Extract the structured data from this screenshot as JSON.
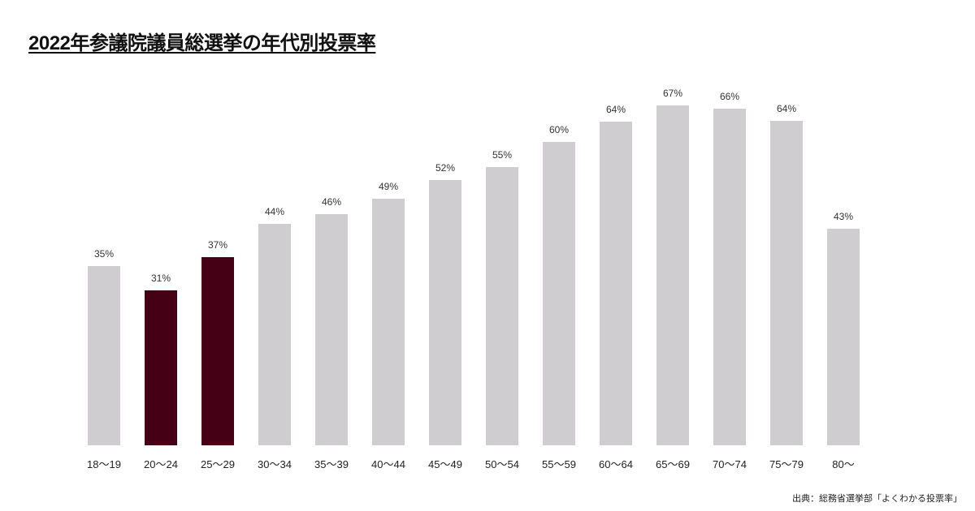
{
  "chart_data": {
    "type": "bar",
    "title": "2022年参議院議員総選挙の年代別投票率",
    "xlabel": "",
    "ylabel": "",
    "ylim": [
      0,
      70
    ],
    "grid": false,
    "legend": null,
    "categories": [
      "18〜19",
      "20〜24",
      "25〜29",
      "30〜34",
      "35〜39",
      "40〜44",
      "45〜49",
      "50〜54",
      "55〜59",
      "60〜64",
      "65〜69",
      "70〜74",
      "75〜79",
      "80〜"
    ],
    "values": [
      35,
      31,
      37,
      44,
      46,
      49,
      52,
      55,
      60,
      64,
      67,
      66,
      64,
      43
    ],
    "value_labels": [
      "35%",
      "31%",
      "37%",
      "44%",
      "46%",
      "49%",
      "52%",
      "55%",
      "60%",
      "64%",
      "67%",
      "66%",
      "64%",
      "43%"
    ],
    "highlighted": [
      "20〜24",
      "25〜29"
    ],
    "colors": {
      "default": "#cfcdd0",
      "highlight": "#450015"
    },
    "source": "出典：総務省選挙部「よくわかる投票率」"
  },
  "layout": {
    "baseline": 549,
    "bar_x0": 108,
    "bar_pitch": 70,
    "bar_tops": [
      328,
      358,
      317,
      276,
      264,
      245,
      222,
      206,
      175,
      150,
      130,
      134,
      149,
      282
    ]
  }
}
